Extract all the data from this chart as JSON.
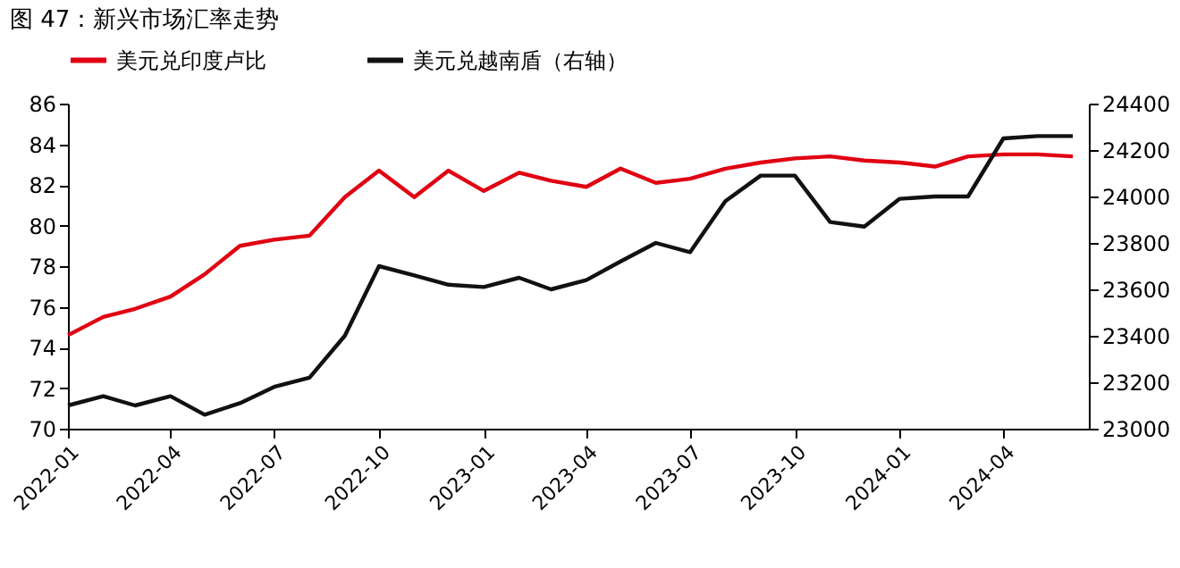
{
  "chart_data": {
    "type": "line",
    "title": "图 47：新兴市场汇率走势",
    "x": [
      "2022-01",
      "2022-02",
      "2022-03",
      "2022-04",
      "2022-05",
      "2022-06",
      "2022-07",
      "2022-08",
      "2022-09",
      "2022-10",
      "2022-11",
      "2022-12",
      "2023-01",
      "2023-02",
      "2023-03",
      "2023-04",
      "2023-05",
      "2023-06",
      "2023-07",
      "2023-08",
      "2023-09",
      "2023-10",
      "2023-11",
      "2023-12",
      "2024-01",
      "2024-02",
      "2024-03",
      "2024-04",
      "2024-05",
      "2024-06"
    ],
    "series": [
      {
        "name": "美元兑印度卢比",
        "color": "#e00012",
        "values": [
          74.6,
          75.5,
          75.9,
          76.5,
          77.6,
          79.0,
          79.3,
          79.5,
          81.4,
          82.7,
          81.4,
          82.7,
          81.7,
          82.6,
          82.2,
          81.9,
          82.8,
          82.1,
          82.3,
          82.8,
          83.1,
          83.3,
          83.4,
          83.2,
          83.1,
          82.9,
          83.4,
          83.5,
          83.5,
          83.4
        ]
      },
      {
        "name": "美元兑越南盾（右轴）",
        "color": "#111111",
        "axis": "y2",
        "values": [
          23100,
          23140,
          23100,
          23140,
          23060,
          23110,
          23180,
          23220,
          23400,
          23700,
          23660,
          23620,
          23610,
          23650,
          23600,
          23640,
          23720,
          23800,
          23760,
          23980,
          24090,
          24090,
          23890,
          23870,
          23990,
          24000,
          24000,
          24250,
          24260,
          24260
        ]
      }
    ],
    "xlim": [
      "2022-01",
      "2024-06-15"
    ],
    "xticks": [
      {
        "value": "2022-01",
        "label": "2022-01"
      },
      {
        "value": "2022-04",
        "label": "2022-04"
      },
      {
        "value": "2022-07",
        "label": "2022-07"
      },
      {
        "value": "2022-10",
        "label": "2022-10"
      },
      {
        "value": "2023-01",
        "label": "2023-01"
      },
      {
        "value": "2023-04",
        "label": "2023-04"
      },
      {
        "value": "2023-07",
        "label": "2023-07"
      },
      {
        "value": "2023-10",
        "label": "2023-10"
      },
      {
        "value": "2024-01",
        "label": "2024-01"
      },
      {
        "value": "2024-04",
        "label": "2024-04"
      }
    ],
    "ylim": [
      70,
      86
    ],
    "yticks": [
      70,
      72,
      74,
      76,
      78,
      80,
      82,
      84,
      86
    ],
    "y2lim": [
      23000,
      24400
    ],
    "y2ticks": [
      23000,
      23200,
      23400,
      23600,
      23800,
      24000,
      24200,
      24400
    ],
    "grid": false,
    "legend": "top",
    "marker": "none",
    "line_style": "solid"
  }
}
